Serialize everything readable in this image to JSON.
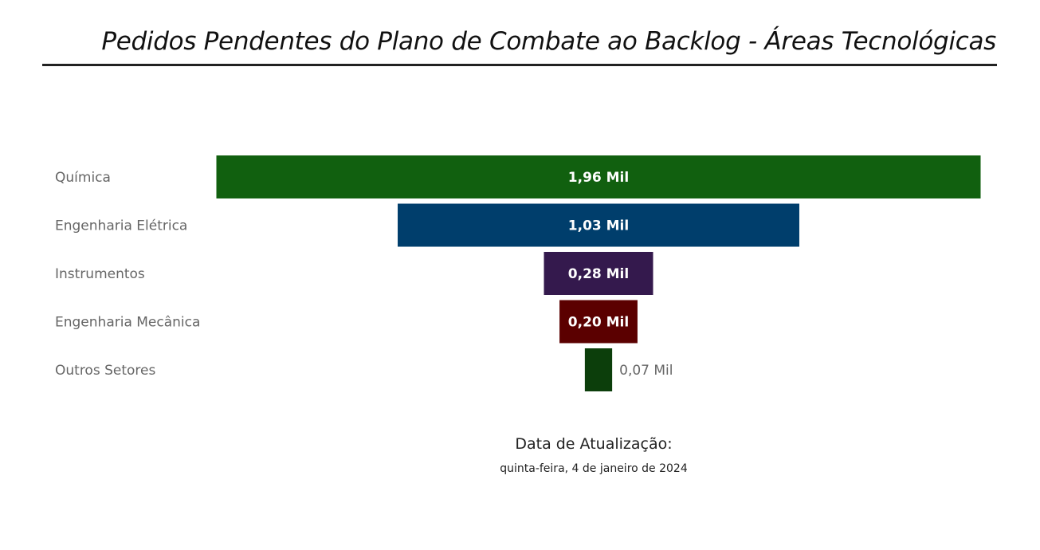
{
  "page": {
    "title": "Pedidos Pendentes do Plano de Combate ao Backlog - Áreas Tecnológicas"
  },
  "chart_data": {
    "type": "funnel",
    "unit": "Mil",
    "categories": [
      "Química",
      "Engenharia Elétrica",
      "Instrumentos",
      "Engenharia Mecânica",
      "Outros Setores"
    ],
    "values": [
      1.96,
      1.03,
      0.28,
      0.2,
      0.07
    ],
    "value_labels": [
      "1,96 Mil",
      "1,03 Mil",
      "0,28 Mil",
      "0,20 Mil",
      "0,07 Mil"
    ],
    "colors": [
      "#11600f",
      "#003e6c",
      "#34194d",
      "#5b0000",
      "#0c3e0b"
    ]
  },
  "update": {
    "label": "Data de Atualização:",
    "date": "quinta-feira, 4 de janeiro de 2024"
  }
}
